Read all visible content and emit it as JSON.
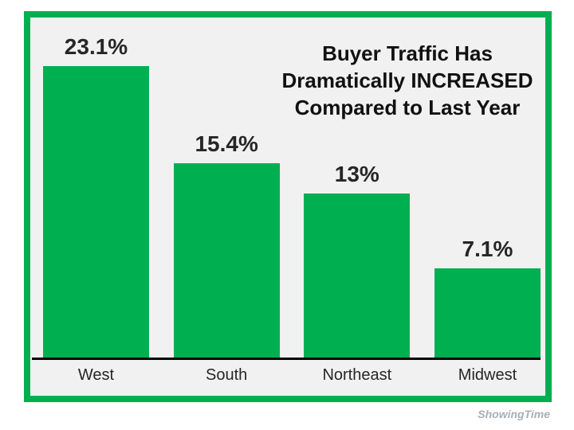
{
  "chart_data": {
    "type": "bar",
    "categories": [
      "West",
      "South",
      "Northeast",
      "Midwest"
    ],
    "values": [
      23.1,
      15.4,
      13,
      7.1
    ],
    "value_labels": [
      "23.1%",
      "15.4%",
      "13%",
      "7.1%"
    ],
    "title": "Buyer Traffic Has Dramatically INCREASED Compared to Last Year",
    "title_lines": [
      "Buyer Traffic Has",
      "Dramatically INCREASED",
      "Compared to Last Year"
    ],
    "xlabel": "",
    "ylabel": "",
    "ylim": [
      0,
      25
    ],
    "grid": false,
    "legend": false,
    "bar_color": "#00B050",
    "frame_border_color": "#00B050",
    "plot_background": "#F1F1F2",
    "axis_color": "#000000",
    "text_color": "#262626"
  },
  "watermark": "ShowingTime"
}
